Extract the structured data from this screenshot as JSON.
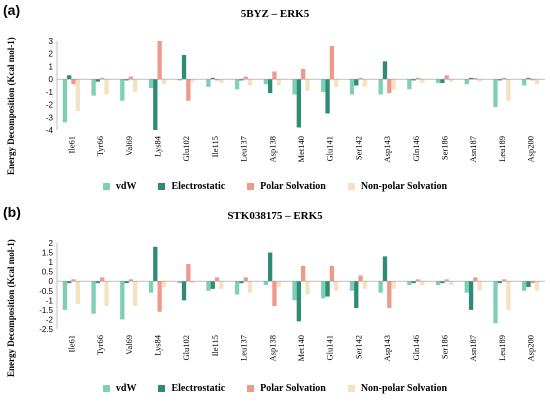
{
  "panels": [
    {
      "letter": "(a)",
      "title": "5BYZ – ERK5",
      "ylabel": "Energy Decomposition (Kcal mol-1)"
    },
    {
      "letter": "(b)",
      "title": "STK038175 – ERK5",
      "ylabel": "Energy Decomposition (Kcal mol-1)"
    }
  ],
  "legend": {
    "labels": [
      "vdW",
      "Electrostatic",
      "Polar Solvation",
      "Non-polar Solvation"
    ]
  },
  "colors": {
    "vdW": "#7fcfb6",
    "Electrostatic": "#2e8b74",
    "Polar Solvation": "#f0998a",
    "Non-polar Solvation": "#f6e1c3"
  },
  "chart_data": [
    {
      "type": "bar",
      "title": "5BYZ – ERK5",
      "ylabel": "Energy Decomposition (Kcal mol-1)",
      "ylim": [
        -4,
        3
      ],
      "yticks": [
        -4,
        -3,
        -2,
        -1,
        0,
        1,
        2,
        3
      ],
      "grid": false,
      "legend_position": "bottom",
      "categories": [
        "Ile61",
        "Tyr66",
        "Val69",
        "Lys84",
        "Glu102",
        "Ile115",
        "Leu137",
        "Asp138",
        "Met140",
        "Glu141",
        "Ser142",
        "Asp143",
        "Gln146",
        "Ser186",
        "Asn187",
        "Leu189",
        "Asp200"
      ],
      "series": [
        {
          "name": "vdW",
          "values": [
            -3.4,
            -1.3,
            -1.7,
            -0.7,
            -0.1,
            -0.6,
            -0.8,
            -0.4,
            -1.2,
            -1.0,
            -1.2,
            -1.2,
            -0.8,
            -0.3,
            -0.4,
            -2.2,
            -0.5
          ]
        },
        {
          "name": "Electrostatic",
          "values": [
            0.3,
            -0.2,
            -0.1,
            -4.0,
            1.9,
            0.1,
            -0.1,
            -1.1,
            -3.8,
            -2.7,
            -0.5,
            1.4,
            -0.1,
            -0.3,
            0.1,
            -0.1,
            0.1
          ]
        },
        {
          "name": "Polar Solvation",
          "values": [
            -0.4,
            0.1,
            0.2,
            3.0,
            -1.7,
            -0.1,
            0.2,
            0.6,
            0.8,
            2.6,
            0.1,
            -1.1,
            0.1,
            0.3,
            0.1,
            0.1,
            -0.1
          ]
        },
        {
          "name": "Non-polar Solvation",
          "values": [
            -2.5,
            -1.2,
            -1.0,
            -0.4,
            -0.2,
            -0.3,
            -0.5,
            -0.5,
            -0.9,
            -0.6,
            -0.6,
            -0.8,
            -0.3,
            -0.2,
            -0.2,
            -1.7,
            -0.4
          ]
        }
      ]
    },
    {
      "type": "bar",
      "title": "STK038175 – ERK5",
      "ylabel": "Energy Decomposition (Kcal mol-1)",
      "ylim": [
        -2.5,
        2
      ],
      "yticks": [
        -2.5,
        -2,
        -1.5,
        -1,
        -0.5,
        0,
        0.5,
        1,
        1.5,
        2
      ],
      "grid": false,
      "legend_position": "bottom",
      "categories": [
        "Ile61",
        "Tyr66",
        "Val69",
        "Lys84",
        "Glu102",
        "Ile115",
        "Leu137",
        "Asp138",
        "Met140",
        "Glu141",
        "Ser142",
        "Asp143",
        "Gln146",
        "Ser186",
        "Asn187",
        "Leu189",
        "Asp200"
      ],
      "series": [
        {
          "name": "vdW",
          "values": [
            -1.5,
            -1.7,
            -2.0,
            -0.6,
            -0.1,
            -0.5,
            -0.7,
            -0.2,
            -1.0,
            -0.9,
            -0.5,
            -0.6,
            -0.2,
            -0.2,
            -0.6,
            -2.2,
            -0.5
          ]
        },
        {
          "name": "Electrostatic",
          "values": [
            -0.1,
            -0.1,
            -0.1,
            1.8,
            -1.0,
            -0.4,
            -0.1,
            1.5,
            -2.1,
            -0.8,
            -1.4,
            1.3,
            -0.1,
            -0.1,
            -1.5,
            -0.1,
            -0.3
          ]
        },
        {
          "name": "Polar Solvation",
          "values": [
            0.1,
            0.2,
            0.1,
            -1.6,
            0.9,
            0.2,
            0.2,
            -1.3,
            0.8,
            0.8,
            0.3,
            -1.4,
            0.1,
            0.1,
            0.2,
            0.1,
            -0.1
          ]
        },
        {
          "name": "Non-polar Solvation",
          "values": [
            -1.2,
            -1.3,
            -1.3,
            -0.3,
            -0.1,
            -0.4,
            -0.6,
            -0.3,
            -0.7,
            -0.5,
            -0.4,
            -0.4,
            -0.2,
            -0.2,
            -0.5,
            -1.5,
            -0.5
          ]
        }
      ]
    }
  ]
}
